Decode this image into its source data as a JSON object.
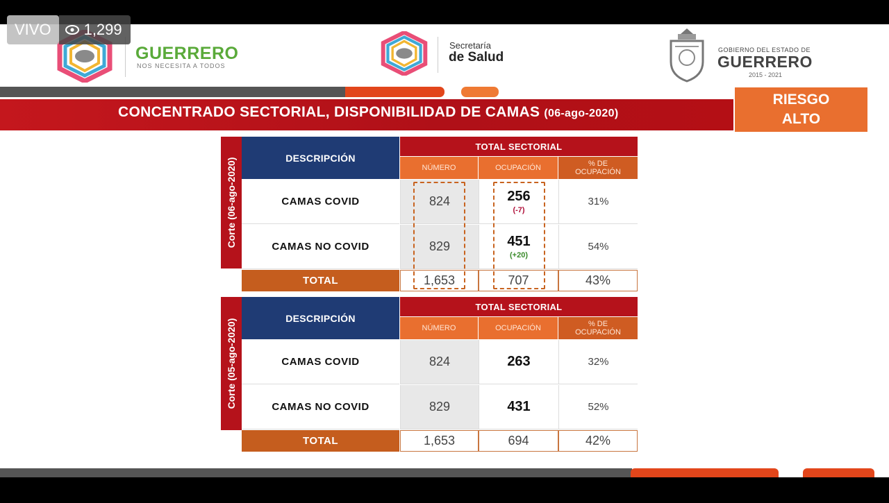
{
  "live": {
    "label": "VIVO",
    "views": "1,299"
  },
  "header": {
    "left_logo_text": "GUERRERO",
    "left_logo_sub": "NOS NECESITA A TODOS",
    "center_line1": "Secretaría",
    "center_line2": "de Salud",
    "right_line1": "GOBIERNO DEL ESTADO DE",
    "right_line2": "GUERRERO",
    "right_line3": "2015 - 2021"
  },
  "title": {
    "main": "CONCENTRADO SECTORIAL, DISPONIBILIDAD DE CAMAS",
    "date": "(06-ago-2020)"
  },
  "risk": {
    "line1": "RIESGO",
    "line2": "ALTO"
  },
  "colors": {
    "red": "#b5121b",
    "navy": "#1f3b74",
    "orange": "#e96f2f",
    "dark_orange": "#c55d1e",
    "green": "#5aaa3a"
  },
  "tables": [
    {
      "side_label": "Corte (06-ago-2020)",
      "desc_header": "DESCRIPCIÓN",
      "group_header": "TOTAL SECTORIAL",
      "col_numero": "NÚMERO",
      "col_ocupacion": "OCUPACIÓN",
      "col_pct": "% DE OCUPACIÓN",
      "rows": [
        {
          "label": "CAMAS COVID",
          "numero": "824",
          "ocupacion": "256",
          "delta": "(-7)",
          "pct": "31%"
        },
        {
          "label": "CAMAS NO COVID",
          "numero": "829",
          "ocupacion": "451",
          "delta": "(+20)",
          "pct": "54%"
        }
      ],
      "total": {
        "label": "TOTAL",
        "numero": "1,653",
        "ocupacion": "707",
        "pct": "43%"
      }
    },
    {
      "side_label": "Corte (05-ago-2020)",
      "desc_header": "DESCRIPCIÓN",
      "group_header": "TOTAL SECTORIAL",
      "col_numero": "NÚMERO",
      "col_ocupacion": "OCUPACIÓN",
      "col_pct": "% DE OCUPACIÓN",
      "rows": [
        {
          "label": "CAMAS COVID",
          "numero": "824",
          "ocupacion": "263",
          "pct": "32%"
        },
        {
          "label": "CAMAS NO COVID",
          "numero": "829",
          "ocupacion": "431",
          "pct": "52%"
        }
      ],
      "total": {
        "label": "TOTAL",
        "numero": "1,653",
        "ocupacion": "694",
        "pct": "42%"
      }
    }
  ]
}
